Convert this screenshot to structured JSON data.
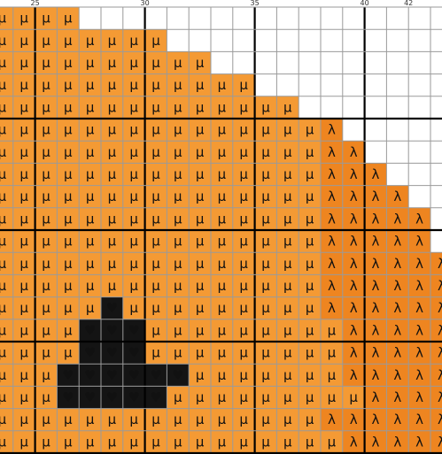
{
  "pattern": {
    "start_col": 23,
    "start_row": 0,
    "major_every": 5,
    "ruler_labels": [
      "25",
      "30",
      "35",
      "40",
      "42"
    ],
    "legend": {
      "o": {
        "symbol": "μ",
        "color": "#F49A34"
      },
      "r": {
        "symbol": "λ",
        "color": "#EE8520"
      },
      "b": {
        "symbol": "♥",
        "color": "#141414",
        "symbol_color": "#FFFFFF"
      },
      "w": {
        "symbol": "",
        "color": "#FFFFFF"
      }
    },
    "rows": [
      "oooowwwwwwwwwwwwwwwwww",
      "oooooooowwwwwwwwwwwwww",
      "oooooooooowwwwwwwwwwww",
      "oooooooooooowwwwwwwwww",
      "oooooooooooooowwwwwwww",
      "ooooooooooooooorwwwwww",
      "ooooooooooooooorrwwwww",
      "ooooooooooooooorrrwwww",
      "ooooooooooooooorrrrwww",
      "ooooooooooooooorrrrrww",
      "ooooooooooooooorrrrrww",
      "ooooooooooooooorrrrrrw",
      "ooooooooooooooorrrrrrw",
      "ooooobooooooooorrrrrrr",
      "oooobbbooooooooorrrrrrr",
      "oooobbbooooooooorrrrrrr",
      "ooobbbbbbooooooorrrrrrr",
      "ooobbbbbooooooooorrrrrr",
      "ooooooooooooooorrrrrrrr",
      "oooooooooooooooorrrrrrr"
    ]
  }
}
